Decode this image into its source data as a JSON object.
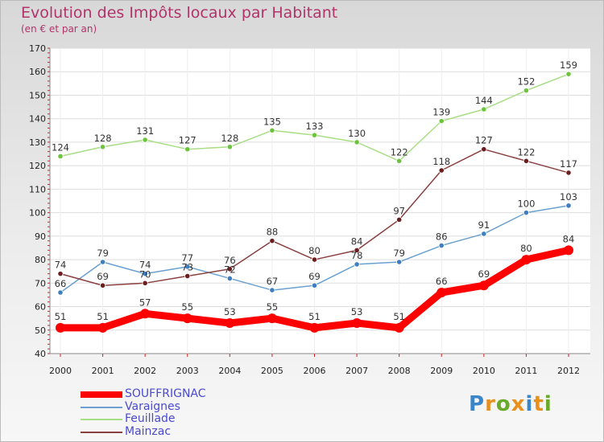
{
  "header": {
    "title": "Evolution des Impôts locaux par Habitant",
    "subtitle": "(en € et par an)"
  },
  "chart_data": {
    "type": "line",
    "title": "Evolution des Impôts locaux par Habitant",
    "subtitle": "(en € et par an)",
    "xlabel": "",
    "ylabel": "",
    "x": [
      "2000",
      "2001",
      "2002",
      "2003",
      "2004",
      "2005",
      "2006",
      "2007",
      "2008",
      "2009",
      "2010",
      "2011",
      "2012"
    ],
    "ylim": [
      40,
      170
    ],
    "yticks": [
      40,
      50,
      60,
      70,
      80,
      90,
      100,
      110,
      120,
      130,
      140,
      150,
      160,
      170
    ],
    "grid": true,
    "legend_position": "bottom-left",
    "series": [
      {
        "name": "SOUFFRIGNAC",
        "color": "#ff0000",
        "marker_color": "#ff0000",
        "emphasis": true,
        "values": [
          51,
          51,
          57,
          55,
          53,
          55,
          51,
          53,
          51,
          66,
          69,
          80,
          84
        ]
      },
      {
        "name": "Varaignes",
        "color": "#6aa0d0",
        "marker_color": "#3f7fc0",
        "values": [
          66,
          79,
          74,
          77,
          72,
          67,
          69,
          78,
          79,
          86,
          91,
          100,
          103
        ]
      },
      {
        "name": "Feuillade",
        "color": "#a8de84",
        "marker_color": "#6cc43c",
        "values": [
          124,
          128,
          131,
          127,
          128,
          135,
          133,
          130,
          122,
          139,
          144,
          152,
          159
        ]
      },
      {
        "name": "Mainzac",
        "color": "#8a4040",
        "marker_color": "#6b1e1e",
        "values": [
          74,
          69,
          70,
          73,
          76,
          88,
          80,
          84,
          97,
          118,
          127,
          122,
          117
        ]
      }
    ],
    "data_labels": [
      {
        "series": "SOUFFRIGNAC",
        "values": [
          "51",
          "51",
          "57",
          "55",
          "53",
          "55",
          "51",
          "53",
          "51",
          "66",
          "69",
          "80",
          "84"
        ]
      },
      {
        "series": "Varaignes",
        "values": [
          "66",
          "79",
          "74",
          "77",
          "72",
          "67",
          "69",
          "78",
          "79",
          "86",
          "91",
          "100",
          "103"
        ]
      },
      {
        "series": "Feuillade",
        "values": [
          "124",
          "128",
          "131",
          "127",
          "128",
          "135",
          "133",
          "130",
          "122",
          "139",
          "144",
          "152",
          "159"
        ]
      },
      {
        "series": "Mainzac",
        "values": [
          "74",
          "69",
          "70",
          "73",
          "76",
          "88",
          "80",
          "84",
          "97",
          "118",
          "127",
          "122",
          "117"
        ]
      }
    ]
  },
  "legend": {
    "items": [
      {
        "label": "SOUFFRIGNAC",
        "color": "#ff0000"
      },
      {
        "label": "Varaignes",
        "color": "#6aa0d0"
      },
      {
        "label": "Feuillade",
        "color": "#a8de84"
      },
      {
        "label": "Mainzac",
        "color": "#8a4040"
      }
    ],
    "text_color": "#4a4ad0"
  },
  "logo": {
    "text": "Proxiti",
    "colors": [
      "#3a86c8",
      "#e8901e",
      "#6aaa2a",
      "#e8901e",
      "#3a86c8",
      "#e8901e",
      "#6aaa2a"
    ]
  }
}
